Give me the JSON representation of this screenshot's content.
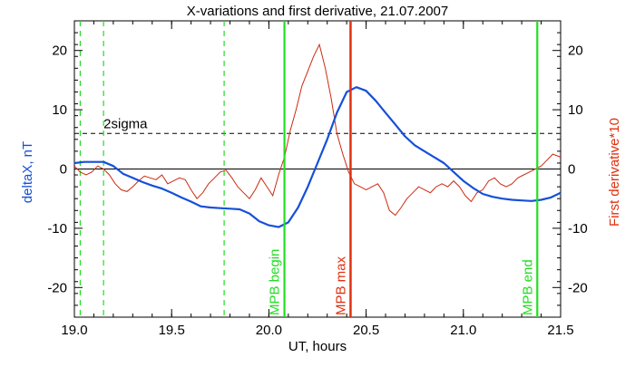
{
  "chart_data": {
    "type": "line",
    "title": "X-variations and first derivative, 21.07.2007",
    "xlabel": "UT, hours",
    "ylabel_left": "deltaX, nT",
    "ylabel_right": "First derivative*10",
    "xlim": [
      19.0,
      21.5
    ],
    "ylim": [
      -25,
      25
    ],
    "x_ticks": [
      "19.0",
      "19.5",
      "20.0",
      "20.5",
      "21.0",
      "21.5"
    ],
    "y_ticks": [
      "-20",
      "-10",
      "0",
      "10",
      "20"
    ],
    "zero_line": 0,
    "sigma_line": {
      "label": "2sigma",
      "value": 6
    },
    "dashed_markers_x": [
      19.03,
      19.15,
      19.77
    ],
    "markers": [
      {
        "label": "MPB begin",
        "x": 20.08,
        "color": "#22dd22"
      },
      {
        "label": "MPB max",
        "x": 20.42,
        "color": "#e03010"
      },
      {
        "label": "MPB end",
        "x": 21.38,
        "color": "#22dd22"
      }
    ],
    "series": [
      {
        "key": "deltaX",
        "color": "#1550d8",
        "x": [
          19.0,
          19.05,
          19.1,
          19.15,
          19.2,
          19.25,
          19.3,
          19.35,
          19.4,
          19.45,
          19.5,
          19.55,
          19.6,
          19.65,
          19.7,
          19.75,
          19.8,
          19.85,
          19.9,
          19.95,
          20.0,
          20.05,
          20.1,
          20.15,
          20.2,
          20.25,
          20.3,
          20.35,
          20.4,
          20.45,
          20.5,
          20.55,
          20.6,
          20.65,
          20.7,
          20.75,
          20.8,
          20.85,
          20.9,
          20.95,
          21.0,
          21.05,
          21.1,
          21.15,
          21.2,
          21.25,
          21.3,
          21.35,
          21.4,
          21.45,
          21.5
        ],
        "values": [
          1.0,
          1.2,
          1.2,
          1.2,
          0.5,
          -0.8,
          -1.5,
          -2.2,
          -2.8,
          -3.3,
          -4.0,
          -4.8,
          -5.5,
          -6.3,
          -6.5,
          -6.6,
          -6.7,
          -6.8,
          -7.5,
          -8.8,
          -9.5,
          -9.8,
          -9.0,
          -6.5,
          -3.0,
          1.0,
          5.0,
          9.5,
          13.0,
          13.8,
          13.2,
          11.5,
          9.5,
          7.5,
          5.5,
          4.0,
          3.0,
          2.0,
          1.0,
          -0.5,
          -2.0,
          -3.2,
          -4.2,
          -4.7,
          -5.0,
          -5.2,
          -5.3,
          -5.4,
          -5.2,
          -4.8,
          -4.0
        ]
      },
      {
        "key": "derivative",
        "color": "#cc2a10",
        "x": [
          19.0,
          19.03,
          19.06,
          19.09,
          19.12,
          19.15,
          19.18,
          19.21,
          19.24,
          19.27,
          19.3,
          19.33,
          19.36,
          19.39,
          19.42,
          19.45,
          19.48,
          19.51,
          19.54,
          19.57,
          19.6,
          19.63,
          19.66,
          19.69,
          19.72,
          19.75,
          19.78,
          19.81,
          19.84,
          19.87,
          19.9,
          19.93,
          19.96,
          19.99,
          20.02,
          20.05,
          20.08,
          20.11,
          20.14,
          20.17,
          20.2,
          20.23,
          20.26,
          20.29,
          20.32,
          20.35,
          20.38,
          20.41,
          20.44,
          20.47,
          20.5,
          20.53,
          20.56,
          20.59,
          20.62,
          20.65,
          20.68,
          20.71,
          20.74,
          20.77,
          20.8,
          20.83,
          20.86,
          20.89,
          20.92,
          20.95,
          20.98,
          21.01,
          21.04,
          21.07,
          21.1,
          21.13,
          21.16,
          21.19,
          21.22,
          21.25,
          21.28,
          21.31,
          21.34,
          21.37,
          21.4,
          21.43,
          21.46,
          21.5
        ],
        "values": [
          0.5,
          -0.5,
          -1.0,
          -0.5,
          0.5,
          0.0,
          -1.0,
          -2.5,
          -3.5,
          -3.8,
          -3.0,
          -2.0,
          -1.2,
          -1.5,
          -1.8,
          -1.0,
          -2.5,
          -2.0,
          -1.5,
          -1.8,
          -3.5,
          -5.0,
          -4.0,
          -2.5,
          -1.5,
          -0.5,
          -0.2,
          -1.5,
          -3.0,
          -4.0,
          -5.0,
          -3.5,
          -1.5,
          -3.0,
          -4.5,
          -1.0,
          2.0,
          6.5,
          10.0,
          14.0,
          16.5,
          19.0,
          21.0,
          17.0,
          12.0,
          6.0,
          2.5,
          -0.5,
          -2.5,
          -3.0,
          -3.5,
          -3.0,
          -2.5,
          -4.0,
          -7.0,
          -7.8,
          -6.5,
          -5.0,
          -4.0,
          -3.0,
          -3.5,
          -4.0,
          -3.0,
          -2.5,
          -3.0,
          -2.0,
          -3.0,
          -4.5,
          -5.5,
          -4.0,
          -3.5,
          -2.0,
          -1.5,
          -2.5,
          -3.0,
          -2.5,
          -1.5,
          -1.0,
          -0.5,
          0.0,
          0.5,
          1.5,
          2.5,
          2.0
        ]
      }
    ],
    "grid": false,
    "legend": "none"
  }
}
